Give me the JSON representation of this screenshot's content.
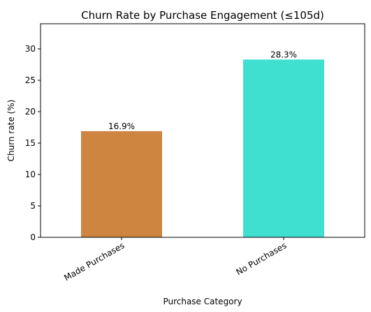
{
  "chart_data": {
    "type": "bar",
    "title": "Churn Rate by Purchase Engagement (≤105d)",
    "xlabel": "Purchase Category",
    "ylabel": "Churn rate (%)",
    "categories": [
      "Made Purchases",
      "No Purchases"
    ],
    "values": [
      16.9,
      28.3
    ],
    "value_labels": [
      "16.9%",
      "28.3%"
    ],
    "colors": [
      "#cd853f",
      "#40e0d0"
    ],
    "ylim": [
      0,
      34
    ],
    "yticks": [
      0,
      5,
      10,
      15,
      20,
      25,
      30
    ],
    "grid": false,
    "legend": "none"
  }
}
